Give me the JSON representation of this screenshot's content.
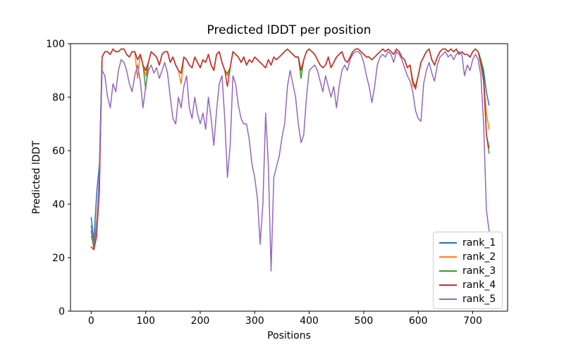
{
  "chart_data": {
    "type": "line",
    "title": "Predicted lDDT per position",
    "xlabel": "Positions",
    "ylabel": "Predicted lDDT",
    "xlim": [
      -38,
      764
    ],
    "ylim": [
      0,
      100
    ],
    "xticks": [
      0,
      100,
      200,
      300,
      400,
      500,
      600,
      700
    ],
    "yticks": [
      0,
      20,
      40,
      60,
      80,
      100
    ],
    "grid": false,
    "legend_position": "lower right",
    "axis_color": "#000000",
    "positions": [
      0,
      5,
      10,
      15,
      20,
      25,
      30,
      35,
      40,
      45,
      50,
      55,
      60,
      65,
      70,
      75,
      80,
      85,
      90,
      95,
      100,
      105,
      110,
      115,
      120,
      125,
      130,
      135,
      140,
      145,
      150,
      155,
      160,
      165,
      170,
      175,
      180,
      185,
      190,
      195,
      200,
      205,
      210,
      215,
      220,
      225,
      230,
      235,
      240,
      245,
      250,
      255,
      260,
      265,
      270,
      275,
      280,
      285,
      290,
      295,
      300,
      305,
      310,
      315,
      320,
      325,
      330,
      335,
      340,
      345,
      350,
      355,
      360,
      365,
      370,
      375,
      380,
      385,
      390,
      395,
      400,
      405,
      410,
      415,
      420,
      425,
      430,
      435,
      440,
      445,
      450,
      455,
      460,
      465,
      470,
      475,
      480,
      485,
      490,
      495,
      500,
      505,
      510,
      515,
      520,
      525,
      530,
      535,
      540,
      545,
      550,
      555,
      560,
      565,
      570,
      575,
      580,
      585,
      590,
      595,
      600,
      605,
      610,
      615,
      620,
      625,
      630,
      635,
      640,
      645,
      650,
      655,
      660,
      665,
      670,
      675,
      680,
      685,
      690,
      695,
      700,
      705,
      710,
      715,
      720,
      725,
      730
    ],
    "series": [
      {
        "name": "rank_1",
        "color": "#1f77b4",
        "values": [
          35,
          26,
          44,
          55,
          95,
          97,
          97,
          96,
          98,
          97,
          97,
          98,
          98,
          96,
          95,
          97,
          97,
          94,
          96,
          92,
          90,
          93,
          97,
          96,
          95,
          92,
          96,
          97,
          97,
          93,
          95,
          92,
          90,
          89,
          95,
          94,
          92,
          91,
          95,
          93,
          91,
          94,
          93,
          96,
          92,
          90,
          96,
          97,
          93,
          90,
          88,
          91,
          97,
          96,
          95,
          93,
          95,
          92,
          94,
          93,
          95,
          94,
          93,
          92,
          91,
          94,
          92,
          95,
          94,
          95,
          96,
          97,
          98,
          97,
          96,
          95,
          95,
          90,
          94,
          97,
          98,
          97,
          96,
          94,
          92,
          91,
          92,
          95,
          91,
          93,
          95,
          96,
          97,
          94,
          93,
          95,
          97,
          98,
          98,
          97,
          96,
          95,
          95,
          94,
          95,
          96,
          97,
          98,
          97,
          98,
          97,
          96,
          98,
          97,
          95,
          94,
          91,
          92,
          86,
          84,
          88,
          93,
          95,
          97,
          98,
          94,
          92,
          95,
          97,
          98,
          98,
          97,
          98,
          97,
          98,
          96,
          97,
          96,
          96,
          95,
          97,
          98,
          97,
          94,
          90,
          82,
          77
        ]
      },
      {
        "name": "rank_2",
        "color": "#ff7f0e",
        "values": [
          28,
          24,
          34,
          48,
          95,
          97,
          97,
          96,
          98,
          97,
          97,
          98,
          98,
          96,
          95,
          97,
          97,
          87,
          96,
          92,
          88,
          93,
          97,
          96,
          95,
          92,
          96,
          97,
          97,
          93,
          95,
          92,
          90,
          85,
          95,
          94,
          92,
          91,
          95,
          93,
          91,
          94,
          93,
          96,
          92,
          90,
          96,
          97,
          93,
          90,
          88,
          91,
          97,
          96,
          95,
          93,
          95,
          92,
          94,
          93,
          95,
          94,
          93,
          92,
          91,
          94,
          92,
          95,
          94,
          95,
          96,
          97,
          98,
          97,
          96,
          95,
          95,
          90,
          94,
          97,
          98,
          97,
          96,
          94,
          92,
          91,
          92,
          95,
          91,
          93,
          95,
          96,
          97,
          94,
          93,
          95,
          97,
          98,
          98,
          97,
          96,
          95,
          95,
          94,
          95,
          96,
          97,
          98,
          97,
          98,
          97,
          96,
          98,
          97,
          95,
          94,
          91,
          92,
          84,
          84,
          88,
          93,
          95,
          97,
          98,
          94,
          92,
          95,
          97,
          98,
          98,
          97,
          98,
          97,
          98,
          96,
          97,
          96,
          96,
          95,
          97,
          98,
          97,
          93,
          87,
          74,
          68
        ]
      },
      {
        "name": "rank_3",
        "color": "#2ca02c",
        "values": [
          30,
          23,
          32,
          50,
          95,
          97,
          97,
          96,
          98,
          97,
          97,
          98,
          98,
          96,
          95,
          97,
          97,
          94,
          96,
          92,
          83,
          93,
          97,
          96,
          95,
          92,
          96,
          97,
          97,
          93,
          95,
          92,
          90,
          89,
          95,
          94,
          92,
          91,
          95,
          93,
          91,
          94,
          93,
          96,
          92,
          90,
          96,
          97,
          93,
          90,
          89,
          91,
          97,
          96,
          95,
          93,
          95,
          92,
          94,
          93,
          95,
          94,
          93,
          92,
          91,
          94,
          92,
          95,
          94,
          95,
          96,
          97,
          98,
          97,
          96,
          95,
          95,
          87,
          94,
          97,
          98,
          97,
          96,
          94,
          92,
          91,
          92,
          95,
          91,
          93,
          95,
          96,
          97,
          94,
          93,
          95,
          97,
          98,
          98,
          97,
          96,
          95,
          95,
          94,
          95,
          96,
          97,
          98,
          97,
          98,
          97,
          96,
          98,
          97,
          95,
          94,
          91,
          92,
          86,
          84,
          88,
          93,
          95,
          97,
          98,
          94,
          92,
          95,
          97,
          98,
          98,
          97,
          98,
          97,
          98,
          96,
          97,
          96,
          96,
          95,
          97,
          98,
          97,
          94,
          88,
          66,
          59
        ]
      },
      {
        "name": "rank_4",
        "color": "#d62728",
        "values": [
          24,
          23,
          28,
          45,
          95,
          97,
          97,
          96,
          98,
          97,
          97,
          98,
          98,
          96,
          95,
          97,
          97,
          94,
          96,
          92,
          90,
          93,
          97,
          96,
          95,
          92,
          96,
          97,
          97,
          93,
          95,
          92,
          90,
          89,
          95,
          94,
          92,
          91,
          95,
          93,
          91,
          94,
          93,
          96,
          92,
          90,
          96,
          97,
          93,
          90,
          84,
          91,
          97,
          96,
          95,
          93,
          95,
          92,
          94,
          93,
          95,
          94,
          93,
          92,
          91,
          94,
          92,
          95,
          94,
          95,
          96,
          97,
          98,
          97,
          96,
          95,
          95,
          90,
          94,
          97,
          98,
          97,
          96,
          94,
          92,
          91,
          92,
          95,
          91,
          93,
          95,
          96,
          97,
          94,
          93,
          95,
          97,
          98,
          98,
          97,
          96,
          95,
          95,
          94,
          95,
          96,
          97,
          98,
          97,
          98,
          97,
          96,
          98,
          97,
          95,
          94,
          91,
          92,
          86,
          83,
          88,
          93,
          95,
          97,
          98,
          94,
          92,
          95,
          97,
          98,
          98,
          97,
          98,
          97,
          98,
          96,
          97,
          96,
          96,
          95,
          97,
          98,
          97,
          92,
          86,
          66,
          61
        ]
      },
      {
        "name": "rank_5",
        "color": "#9467bd",
        "values": [
          32,
          25,
          30,
          52,
          90,
          88,
          80,
          76,
          85,
          82,
          90,
          94,
          93,
          90,
          85,
          82,
          88,
          92,
          86,
          76,
          84,
          90,
          92,
          89,
          91,
          87,
          90,
          93,
          89,
          80,
          72,
          70,
          80,
          76,
          84,
          88,
          76,
          72,
          80,
          74,
          70,
          74,
          68,
          80,
          72,
          62,
          75,
          85,
          88,
          72,
          50,
          62,
          88,
          85,
          77,
          72,
          70,
          70,
          64,
          55,
          50,
          42,
          25,
          40,
          74,
          55,
          15,
          50,
          54,
          58,
          65,
          70,
          84,
          90,
          85,
          80,
          70,
          63,
          66,
          80,
          90,
          91,
          92,
          90,
          86,
          82,
          88,
          84,
          80,
          84,
          76,
          84,
          90,
          92,
          90,
          94,
          96,
          97,
          97,
          96,
          93,
          88,
          84,
          78,
          84,
          92,
          95,
          96,
          95,
          97,
          96,
          93,
          97,
          96,
          94,
          91,
          88,
          86,
          82,
          75,
          72,
          71,
          85,
          90,
          93,
          89,
          86,
          92,
          95,
          96,
          97,
          95,
          96,
          94,
          96,
          97,
          96,
          88,
          92,
          90,
          94,
          96,
          94,
          88,
          70,
          38,
          30
        ]
      }
    ]
  }
}
